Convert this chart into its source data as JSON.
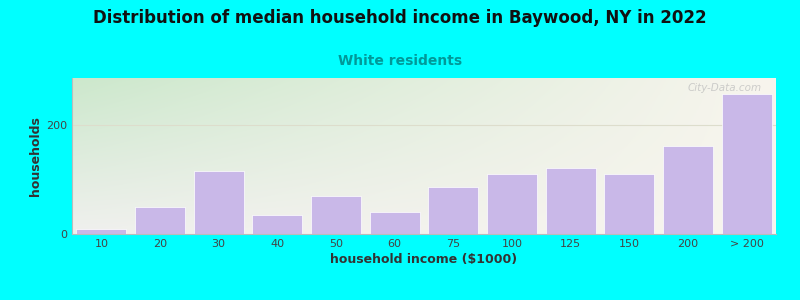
{
  "title": "Distribution of median household income in Baywood, NY in 2022",
  "subtitle": "White residents",
  "xlabel": "household income ($1000)",
  "ylabel": "households",
  "categories": [
    "10",
    "20",
    "30",
    "40",
    "50",
    "60",
    "75",
    "100",
    "125",
    "150",
    "200",
    "> 200"
  ],
  "values": [
    10,
    50,
    115,
    35,
    70,
    40,
    85,
    110,
    120,
    110,
    160,
    255
  ],
  "bar_color": "#c9b8e8",
  "bar_edgecolor": "#ffffff",
  "background_outer": "#00ffff",
  "bg_topleft": "#cce8cc",
  "bg_topright": "#f0efe8",
  "yticks": [
    0,
    200
  ],
  "ylim": [
    0,
    285
  ],
  "title_fontsize": 12,
  "subtitle_fontsize": 10,
  "axis_label_fontsize": 9,
  "tick_fontsize": 8,
  "watermark": "City-Data.com"
}
